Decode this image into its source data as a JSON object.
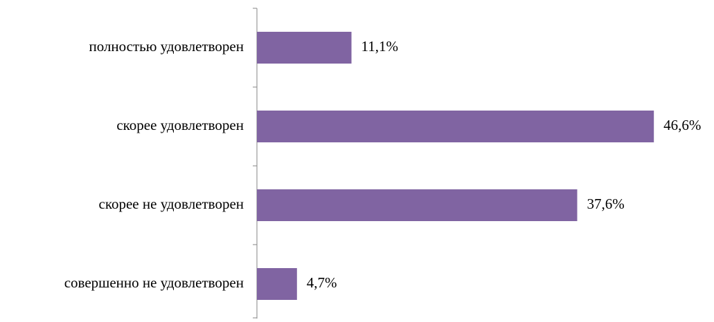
{
  "chart_data": {
    "type": "bar",
    "orientation": "horizontal",
    "categories": [
      "полностью удовлетворен",
      "скорее удовлетворен",
      "скорее не удовлетворен",
      "совершенно не удовлетворен"
    ],
    "values": [
      11.1,
      46.6,
      37.6,
      4.7
    ],
    "value_labels": [
      "11,1%",
      "46,6%",
      "37,6%",
      "4,7%"
    ],
    "color": "#8064a2"
  }
}
